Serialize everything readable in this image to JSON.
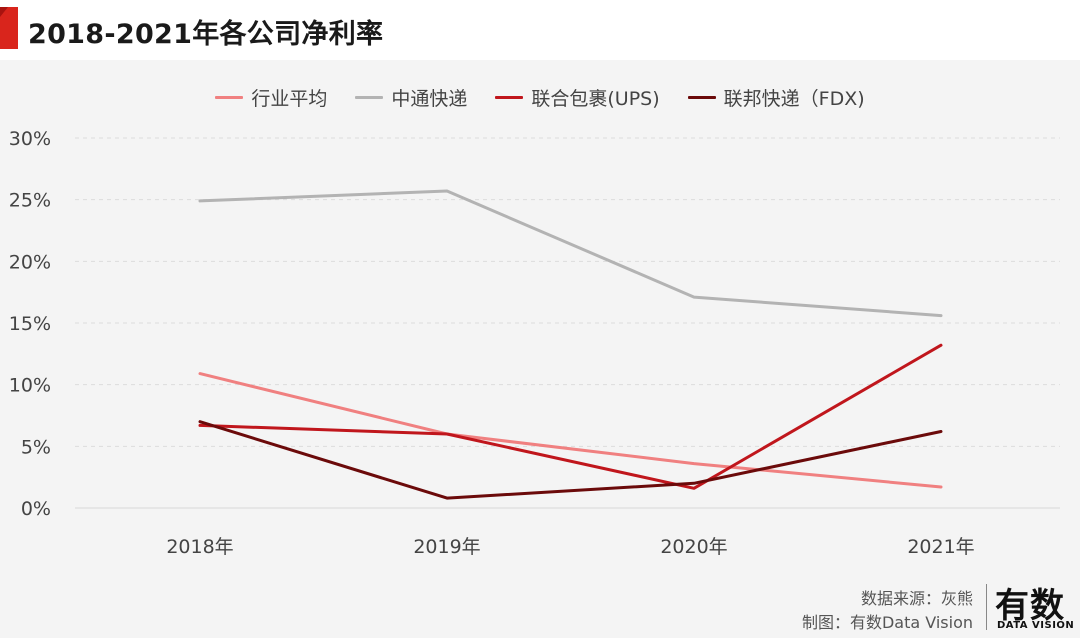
{
  "header": {
    "title": "2018-2021年各公司净利率",
    "accent_color": "#d9251c"
  },
  "chart_data": {
    "type": "line",
    "title": "2018-2021年各公司净利率",
    "categories": [
      "2018年",
      "2019年",
      "2020年",
      "2021年"
    ],
    "y_ticks": [
      "0%",
      "5%",
      "10%",
      "15%",
      "20%",
      "25%",
      "30%"
    ],
    "ylim": [
      0,
      30
    ],
    "grid": true,
    "legend_position": "top",
    "series": [
      {
        "name": "行业平均",
        "color": "#f08080",
        "values": [
          10.9,
          6.0,
          3.6,
          1.7
        ]
      },
      {
        "name": "中通快递",
        "color": "#b3b3b3",
        "values": [
          24.9,
          25.7,
          17.1,
          15.6
        ]
      },
      {
        "name": "联合包裹(UPS)",
        "color": "#c0161c",
        "values": [
          6.7,
          6.0,
          1.6,
          13.2
        ]
      },
      {
        "name": "联邦快递（FDX)",
        "color": "#6b0a0a",
        "values": [
          7.0,
          0.8,
          2.0,
          6.2
        ]
      }
    ]
  },
  "footer": {
    "source": "数据来源：灰熊",
    "maker": "制图：有数Data Vision",
    "logo_main": "有数",
    "logo_sub": "DATA VISION"
  }
}
